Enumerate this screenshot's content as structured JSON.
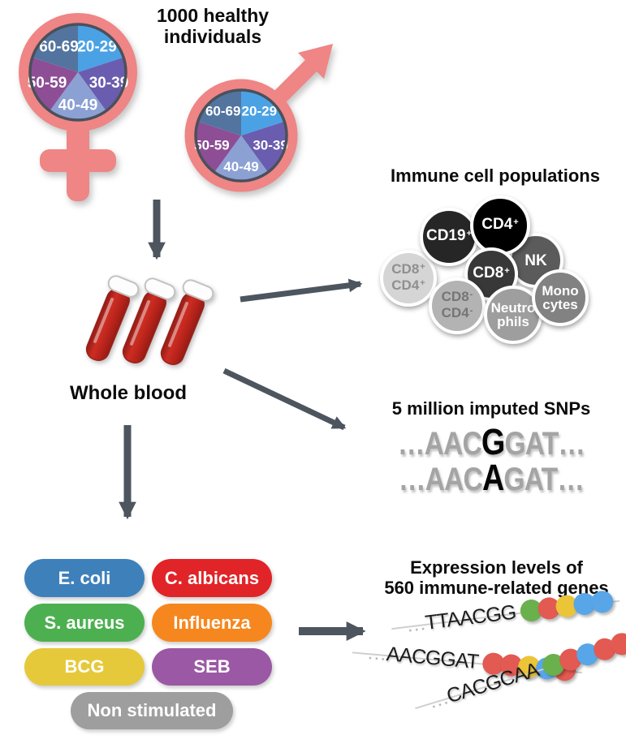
{
  "title": {
    "line1": "1000 healthy",
    "line2": "individuals"
  },
  "demographics": {
    "symbol_color": "#ef8585",
    "pie_outline_color": "#4a505b",
    "female_icon": "female-symbol",
    "male_icon": "male-symbol",
    "age_groups": [
      {
        "label": "20-29",
        "color": "#4aa2e5"
      },
      {
        "label": "30-39",
        "color": "#6a5db0"
      },
      {
        "label": "40-49",
        "color": "#8ba0d3"
      },
      {
        "label": "50-59",
        "color": "#8d4e95"
      },
      {
        "label": "60-69",
        "color": "#52749f"
      }
    ]
  },
  "whole_blood": {
    "label": "Whole blood",
    "tube_count": 3,
    "blood_color": "#b52620",
    "blood_dark": "#8f1d17",
    "blood_bright": "#cd2d22"
  },
  "immune_cells": {
    "title": "Immune cell populations",
    "cells": [
      {
        "lines": [
          [
            "CD8",
            "+"
          ],
          [
            "CD4",
            "+"
          ]
        ],
        "fill": "#d5d5d5",
        "text_color": "#8f8f8f"
      },
      {
        "lines": [
          [
            "CD19",
            "+"
          ]
        ],
        "fill": "#262626",
        "text_color": "#ffffff"
      },
      {
        "lines": [
          [
            "NK",
            ""
          ]
        ],
        "fill": "#5b5b5b",
        "text_color": "#ffffff"
      },
      {
        "lines": [
          [
            "CD4",
            "+"
          ]
        ],
        "fill": "#000000",
        "text_color": "#ffffff"
      },
      {
        "lines": [
          [
            "CD8",
            "+"
          ]
        ],
        "fill": "#383838",
        "text_color": "#ffffff"
      },
      {
        "lines": [
          [
            "CD8",
            "-"
          ],
          [
            "CD4",
            "-"
          ]
        ],
        "fill": "#b3b3b3",
        "text_color": "#757575"
      },
      {
        "lines": [
          [
            "Neutro",
            ""
          ],
          [
            "phils",
            ""
          ]
        ],
        "fill": "#9e9e9e",
        "text_color": "#ffffff"
      },
      {
        "lines": [
          [
            "Mono",
            ""
          ],
          [
            "cytes",
            ""
          ]
        ],
        "fill": "#828282",
        "text_color": "#ffffff"
      }
    ]
  },
  "snps": {
    "title": "5 million imputed SNPs",
    "sequences": [
      {
        "pre": "…AAC",
        "variant": "G",
        "post": "GAT…"
      },
      {
        "pre": "…AAC",
        "variant": "A",
        "post": "GAT…"
      }
    ]
  },
  "stimuli": {
    "items": [
      {
        "label": "E. coli",
        "color": "#3e80ba"
      },
      {
        "label": "C. albicans",
        "color": "#e12428"
      },
      {
        "label": "S. aureus",
        "color": "#4cb050"
      },
      {
        "label": "Influenza",
        "color": "#f6871f"
      },
      {
        "label": "BCG",
        "color": "#e5c93a"
      },
      {
        "label": "SEB",
        "color": "#9b58a5"
      },
      {
        "label": "Non stimulated",
        "color": "#9e9e9e"
      }
    ]
  },
  "expression": {
    "title_line1": "Expression levels of",
    "title_line2": "560 immune-related genes",
    "dot_colors": {
      "green": "#6ab04c",
      "red": "#e25a52",
      "yellow": "#ecc438",
      "blue": "#58a6e8"
    },
    "strands": [
      {
        "ellipsis": "…",
        "sequence": "TTAACGG",
        "dots": [
          "green",
          "red",
          "yellow",
          "blue",
          "blue"
        ]
      },
      {
        "ellipsis": "…",
        "sequence": "AACGGAT",
        "dots": [
          "red",
          "red",
          "yellow",
          "blue",
          "red"
        ]
      },
      {
        "ellipsis": "…",
        "sequence": "CACGCAA",
        "dots": [
          "green",
          "red",
          "blue",
          "red",
          "red"
        ]
      }
    ]
  },
  "arrow_color": "#4d555f"
}
